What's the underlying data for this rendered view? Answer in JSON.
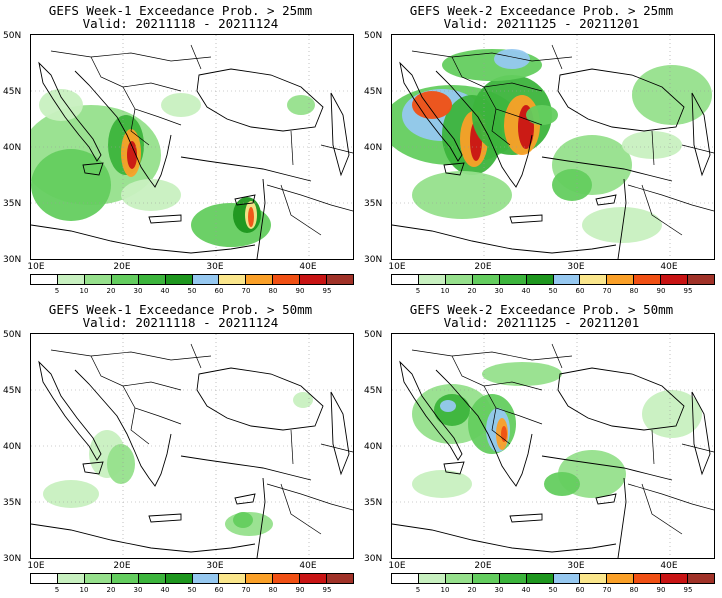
{
  "panels": [
    {
      "title": "GEFS Week-1 Exceedance Prob. > 25mm",
      "valid": "Valid: 20211118 - 20211124",
      "intensity": "w1_25"
    },
    {
      "title": "GEFS Week-2 Exceedance Prob. > 25mm",
      "valid": "Valid: 20211125 - 20211201",
      "intensity": "w2_25"
    },
    {
      "title": "GEFS Week-1 Exceedance Prob. > 50mm",
      "valid": "Valid: 20211118 - 20211124",
      "intensity": "w1_50"
    },
    {
      "title": "GEFS Week-2 Exceedance Prob. > 50mm",
      "valid": "Valid: 20211125 - 20211201",
      "intensity": "w2_50"
    }
  ],
  "axes": {
    "lat_labels": [
      "50N",
      "45N",
      "40N",
      "35N",
      "30N"
    ],
    "lon_labels": [
      "10E",
      "20E",
      "30E",
      "40E"
    ]
  },
  "colorbar": {
    "labels": [
      "5",
      "10",
      "20",
      "30",
      "40",
      "50",
      "60",
      "70",
      "80",
      "90",
      "95"
    ],
    "colors": [
      "#ffffff",
      "#c8f0c0",
      "#96e08c",
      "#64cd5f",
      "#3cb43c",
      "#1e961e",
      "#96c8f0",
      "#fae68c",
      "#faa028",
      "#f05014",
      "#c81414",
      "#a03228"
    ]
  }
}
